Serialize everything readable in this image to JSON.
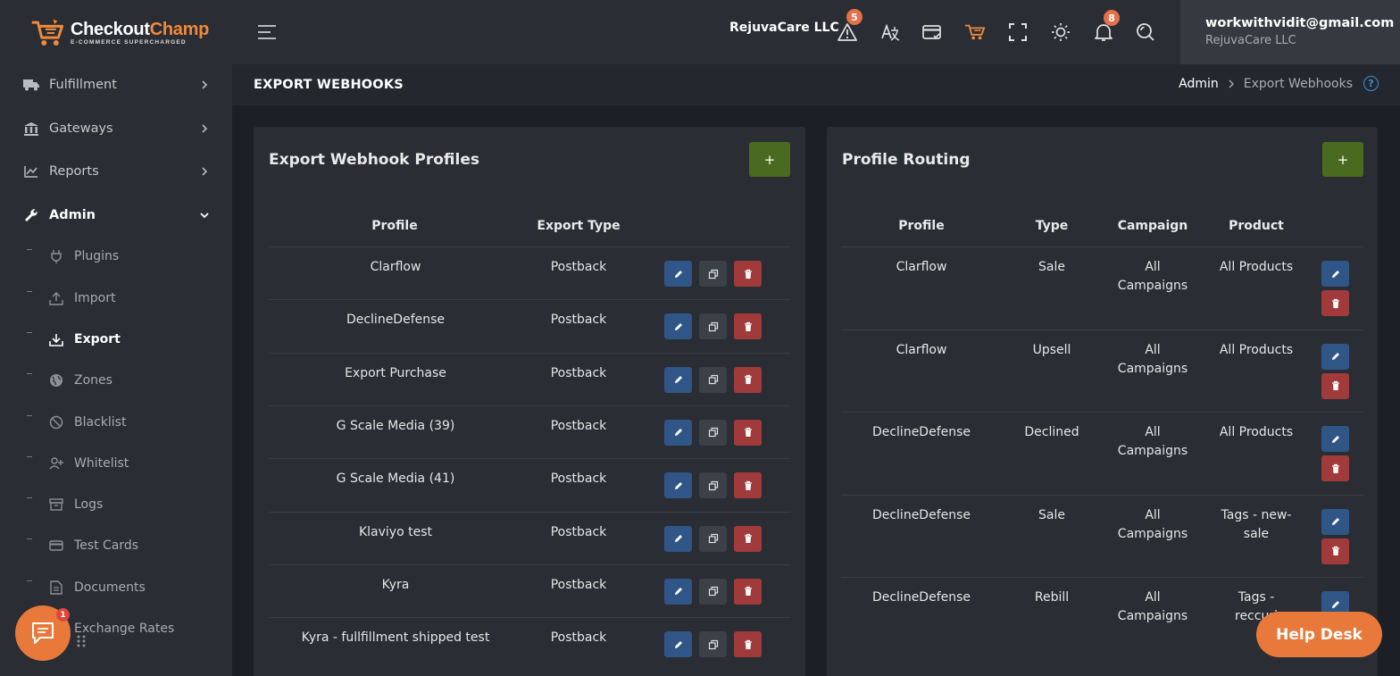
{
  "brand": {
    "name_part1": "Checkout",
    "name_part2": "Champ",
    "tagline": "E-COMMERCE SUPERCHARGED"
  },
  "sidebar": {
    "items": [
      {
        "label": "Fulfillment",
        "icon": "truck-icon"
      },
      {
        "label": "Gateways",
        "icon": "bank-icon"
      },
      {
        "label": "Reports",
        "icon": "chart-line-icon"
      },
      {
        "label": "Admin",
        "icon": "wrench-icon"
      }
    ],
    "admin_sub_items": [
      {
        "label": "Plugins",
        "icon": "plug-icon"
      },
      {
        "label": "Import",
        "icon": "upload-icon"
      },
      {
        "label": "Export",
        "icon": "download-icon"
      },
      {
        "label": "Zones",
        "icon": "globe-icon"
      },
      {
        "label": "Blacklist",
        "icon": "ban-icon"
      },
      {
        "label": "Whitelist",
        "icon": "user-plus-icon"
      },
      {
        "label": "Logs",
        "icon": "archive-icon"
      },
      {
        "label": "Test Cards",
        "icon": "credit-card-icon"
      },
      {
        "label": "Documents",
        "icon": "document-icon"
      },
      {
        "label": "Exchange Rates",
        "icon": "exchange-icon"
      }
    ]
  },
  "header": {
    "company": "RejuvaCare LLC",
    "alerts_count": "5",
    "notifications_count": "8",
    "user_email": "workwithvidit@gmail.com",
    "user_company": "RejuvaCare LLC"
  },
  "page": {
    "title": "EXPORT WEBHOOKS",
    "breadcrumb_home": "Admin",
    "breadcrumb_current": "Export Webhooks",
    "help_icon": "?"
  },
  "profiles_card": {
    "title": "Export Webhook Profiles",
    "add_label": "+",
    "columns": [
      "Profile",
      "Export Type"
    ],
    "rows": [
      {
        "profile": "Clarflow",
        "type": "Postback"
      },
      {
        "profile": "DeclineDefense",
        "type": "Postback"
      },
      {
        "profile": "Export Purchase",
        "type": "Postback"
      },
      {
        "profile": "G Scale Media (39)",
        "type": "Postback"
      },
      {
        "profile": "G Scale Media (41)",
        "type": "Postback"
      },
      {
        "profile": "Klaviyo test",
        "type": "Postback"
      },
      {
        "profile": "Kyra",
        "type": "Postback"
      },
      {
        "profile": "Kyra - fullfillment shipped test",
        "type": "Postback"
      }
    ]
  },
  "routing_card": {
    "title": "Profile Routing",
    "add_label": "+",
    "columns": [
      "Profile",
      "Type",
      "Campaign",
      "Product"
    ],
    "rows": [
      {
        "profile": "Clarflow",
        "type": "Sale",
        "campaign_l1": "All",
        "campaign_l2": "Campaigns",
        "product_l1": "All Products",
        "product_l2": ""
      },
      {
        "profile": "Clarflow",
        "type": "Upsell",
        "campaign_l1": "All",
        "campaign_l2": "Campaigns",
        "product_l1": "All Products",
        "product_l2": ""
      },
      {
        "profile": "DeclineDefense",
        "type": "Declined",
        "campaign_l1": "All",
        "campaign_l2": "Campaigns",
        "product_l1": "All Products",
        "product_l2": ""
      },
      {
        "profile": "DeclineDefense",
        "type": "Sale",
        "campaign_l1": "All",
        "campaign_l2": "Campaigns",
        "product_l1": "Tags - new-",
        "product_l2": "sale"
      },
      {
        "profile": "DeclineDefense",
        "type": "Rebill",
        "campaign_l1": "All",
        "campaign_l2": "Campaigns",
        "product_l1": "Tags -",
        "product_l2": "reccuri"
      }
    ]
  },
  "widgets": {
    "chat_badge": "1",
    "help_desk_label": "Help Desk"
  },
  "colors": {
    "accent": "#e8793b",
    "add_button": "#4a6b1f",
    "edit_button": "#2f5687",
    "delete_button": "#a13b3b"
  }
}
